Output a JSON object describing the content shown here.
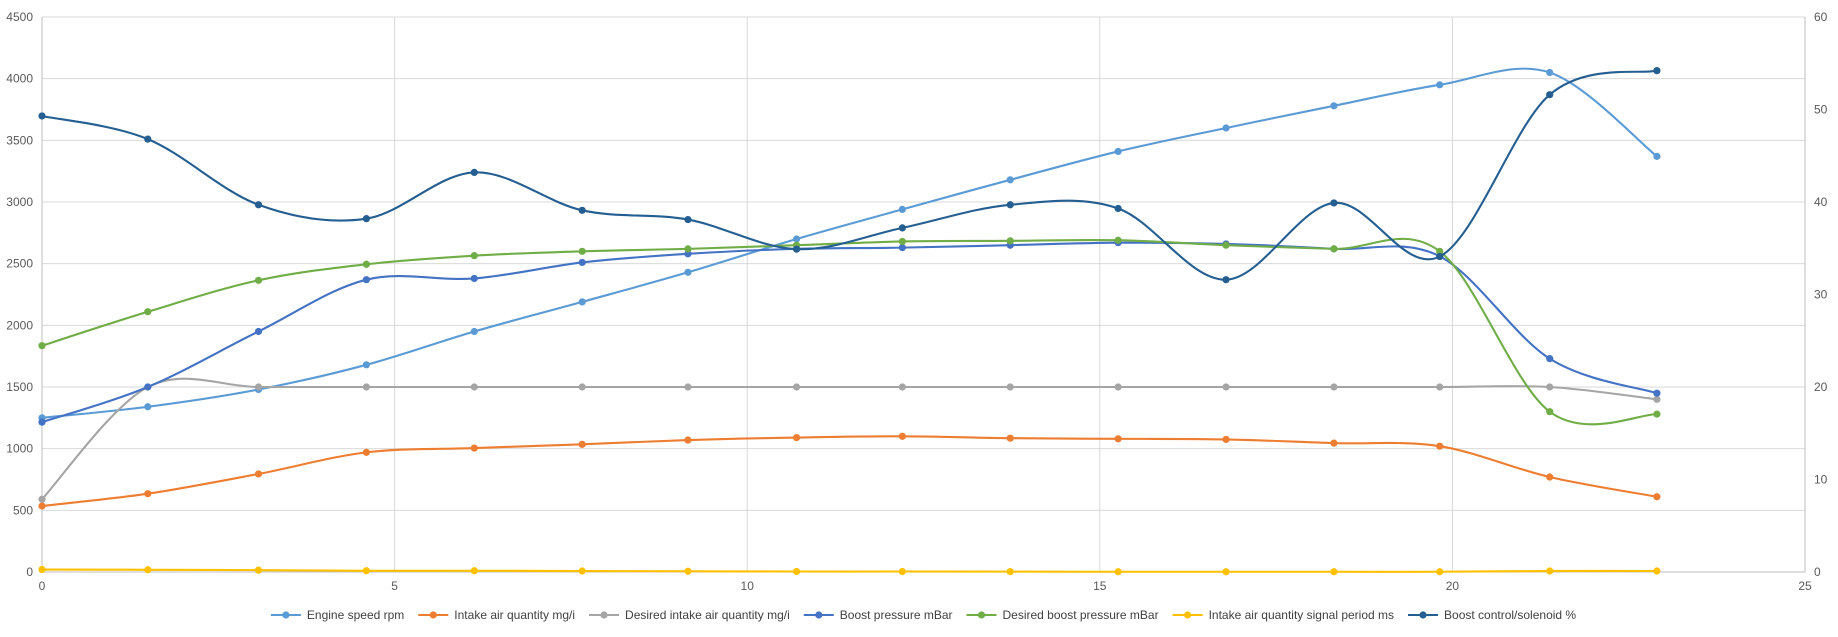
{
  "chart_data": {
    "type": "line",
    "smooth": true,
    "x_axis": {
      "min": 0,
      "max": 25,
      "ticks": [
        0,
        5,
        10,
        15,
        20,
        25
      ],
      "grid": true
    },
    "y_axis_left": {
      "min": 0,
      "max": 4500,
      "ticks": [
        0,
        500,
        1000,
        1500,
        2000,
        2500,
        3000,
        3500,
        4000,
        4500
      ],
      "grid": true
    },
    "y_axis_right": {
      "min": 0,
      "max": 60,
      "ticks": [
        0,
        10,
        20,
        30,
        40,
        50,
        60
      ]
    },
    "legend_position": "bottom",
    "x": [
      0,
      1.5,
      3.07,
      4.6,
      6.13,
      7.66,
      9.16,
      10.7,
      12.2,
      13.73,
      15.26,
      16.79,
      18.32,
      19.82,
      21.38,
      22.9
    ],
    "series": [
      {
        "name": "Engine speed rpm",
        "color": "#5B9BD5",
        "axis": "left",
        "values": [
          1250,
          1340,
          1480,
          1680,
          1950,
          2190,
          2430,
          2700,
          2940,
          3180,
          3410,
          3600,
          3780,
          3950,
          4050,
          3370
        ]
      },
      {
        "name": "Intake air quantity mg/i",
        "color": "#ED7D31",
        "axis": "left",
        "values": [
          535,
          635,
          795,
          970,
          1005,
          1035,
          1070,
          1090,
          1100,
          1085,
          1080,
          1075,
          1045,
          1020,
          770,
          610
        ]
      },
      {
        "name": "Desired intake air quantity mg/i",
        "color": "#A5A5A5",
        "axis": "left",
        "values": [
          590,
          1500,
          1500,
          1500,
          1500,
          1500,
          1500,
          1500,
          1500,
          1500,
          1500,
          1500,
          1500,
          1500,
          1500,
          1400
        ]
      },
      {
        "name": "Boost pressure mBar",
        "color": "#4472C4",
        "axis": "left",
        "values": [
          1215,
          1500,
          1950,
          2370,
          2380,
          2510,
          2580,
          2620,
          2630,
          2650,
          2670,
          2660,
          2620,
          2560,
          1730,
          1450
        ]
      },
      {
        "name": "Desired boost pressure mBar",
        "color": "#70AD47",
        "axis": "left",
        "values": [
          1835,
          2110,
          2365,
          2495,
          2565,
          2600,
          2620,
          2650,
          2680,
          2685,
          2690,
          2650,
          2620,
          2600,
          1300,
          1280
        ]
      },
      {
        "name": "Intake air quantity signal period ms",
        "color": "#FFC000",
        "axis": "left",
        "values": [
          20,
          18,
          15,
          10,
          10,
          8,
          6,
          4,
          4,
          3,
          2,
          2,
          2,
          2,
          8,
          8
        ]
      },
      {
        "name": "Boost control/solenoid %",
        "color": "#255E91",
        "axis": "right",
        "values": [
          49.3,
          46.8,
          39.7,
          38.2,
          43.2,
          39.1,
          38.1,
          34.9,
          37.2,
          39.7,
          39.3,
          31.6,
          39.9,
          34.1,
          51.6,
          54.2
        ]
      }
    ]
  }
}
